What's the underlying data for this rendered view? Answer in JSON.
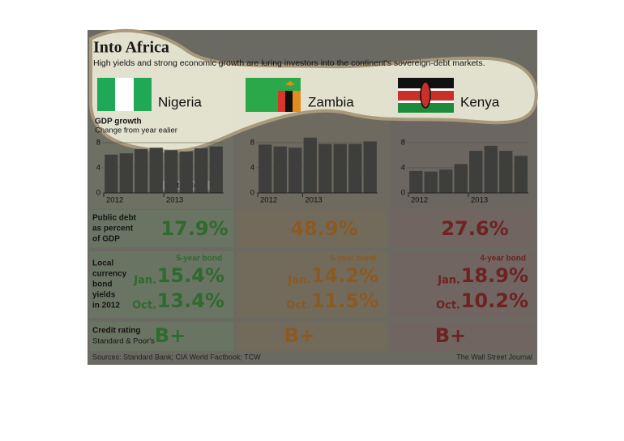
{
  "header": {
    "title": "Into Africa",
    "subtitle": "High yields and strong economic growth are luring investors into the continent's sovereign-debt markets."
  },
  "chart_labels": {
    "gdp_title": "GDP growth",
    "gdp_subtitle": "Change from year ealier"
  },
  "chart_data": [
    {
      "type": "bar",
      "title": "Nigeria",
      "categories": [
        "2012",
        null,
        null,
        null,
        "2013",
        null,
        null,
        null
      ],
      "values": [
        6.1,
        6.3,
        7.0,
        7.2,
        6.8,
        6.6,
        7.1,
        7.4
      ],
      "color": "#3e3e3c",
      "ylim": [
        0,
        8
      ],
      "yticks": [
        0,
        4,
        8
      ],
      "annotation": "estimates"
    },
    {
      "type": "bar",
      "title": "Zambia",
      "categories": [
        "2012",
        null,
        null,
        "2013",
        null,
        null,
        null,
        null
      ],
      "values": [
        7.7,
        7.4,
        7.2,
        8.8,
        7.8,
        7.8,
        7.8,
        8.2
      ],
      "color": "#3e3e3c",
      "ylim": [
        0,
        8
      ],
      "yticks": [
        0,
        4,
        8
      ]
    },
    {
      "type": "bar",
      "title": "Kenya",
      "categories": [
        "2012",
        null,
        null,
        null,
        "2013",
        null,
        null,
        null
      ],
      "values": [
        3.5,
        3.4,
        3.7,
        4.6,
        6.7,
        7.5,
        6.7,
        5.9
      ],
      "color": "#3e3e3c",
      "ylim": [
        0,
        8
      ],
      "yticks": [
        0,
        4,
        8
      ]
    }
  ],
  "rows": {
    "debt_label": [
      "Public debt",
      "as percent",
      "of GDP"
    ],
    "yield_label": [
      "Local",
      "currency",
      "bond",
      "yields",
      "in 2012"
    ],
    "credit_label": "Credit rating",
    "credit_sub": "Standard & Poor's"
  },
  "countries": [
    {
      "debt": "17.9%",
      "bond": "5-year bond",
      "jan": "Jan.",
      "jan_yield": "15.4%",
      "oct": "Oct.",
      "oct_yield": "13.4%",
      "rating": "B+",
      "color": "#2f6a2f"
    },
    {
      "debt": "48.9%",
      "bond": "5-year bond",
      "jan": "Jan.",
      "jan_yield": "14.2%",
      "oct": "Oct.",
      "oct_yield": "11.5%",
      "rating": "B+",
      "color": "#8a5a22"
    },
    {
      "debt": "27.6%",
      "bond": "4-year bond",
      "jan": "Jan.",
      "jan_yield": "18.9%",
      "oct": "Oct.",
      "oct_yield": "10.2%",
      "rating": "B+",
      "color": "#6e2222"
    }
  ],
  "footer": {
    "source": "Sources: Standard Bank; CIA World Factbook; TCW",
    "credit": "The Wall Street Journal"
  }
}
